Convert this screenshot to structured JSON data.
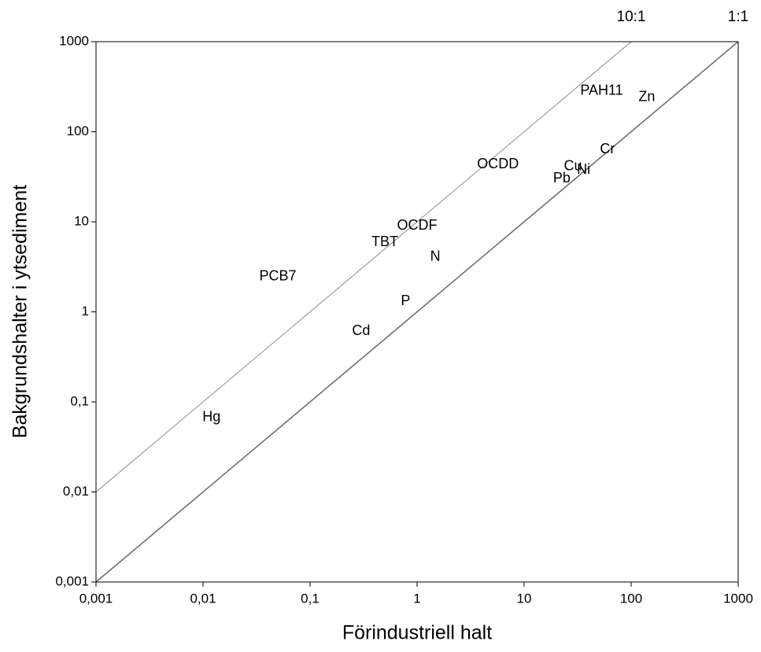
{
  "chart_data": {
    "type": "scatter",
    "xlabel": "Förindustriell halt",
    "ylabel": "Bakgrundshalter i ytsediment",
    "xscale": "log",
    "yscale": "log",
    "xlim": [
      0.001,
      1000
    ],
    "ylim": [
      0.001,
      1000
    ],
    "xticks": [
      {
        "value": 0.001,
        "label": "0,001"
      },
      {
        "value": 0.01,
        "label": "0,01"
      },
      {
        "value": 0.1,
        "label": "0,1"
      },
      1,
      10,
      100,
      1000
    ],
    "yticks": [
      {
        "value": 0.001,
        "label": "0,001"
      },
      {
        "value": 0.01,
        "label": "0,01"
      },
      {
        "value": 0.1,
        "label": "0,1"
      },
      1,
      10,
      100,
      1000
    ],
    "reference_lines": [
      {
        "label": "10:1",
        "ratio": 10,
        "color": "#8c8c8c"
      },
      {
        "label": "1:1",
        "ratio": 1,
        "color": "#707070"
      }
    ],
    "points": [
      {
        "label": "Hg",
        "x": 0.012,
        "y": 0.067
      },
      {
        "label": "PCB7",
        "x": 0.05,
        "y": 2.45
      },
      {
        "label": "TBT",
        "x": 0.5,
        "y": 5.9
      },
      {
        "label": "OCDF",
        "x": 1.0,
        "y": 9.0
      },
      {
        "label": "N",
        "x": 1.48,
        "y": 4.05
      },
      {
        "label": "P",
        "x": 0.78,
        "y": 1.31
      },
      {
        "label": "Cd",
        "x": 0.3,
        "y": 0.61
      },
      {
        "label": "OCDD",
        "x": 5.7,
        "y": 43
      },
      {
        "label": "PAH11",
        "x": 53,
        "y": 282
      },
      {
        "label": "Zn",
        "x": 140,
        "y": 240
      },
      {
        "label": "Cr",
        "x": 60,
        "y": 63
      },
      {
        "label": "Cu",
        "x": 28.6,
        "y": 41
      },
      {
        "label": "Ni",
        "x": 36,
        "y": 37.7
      },
      {
        "label": "Pb",
        "x": 22.5,
        "y": 30
      }
    ]
  }
}
